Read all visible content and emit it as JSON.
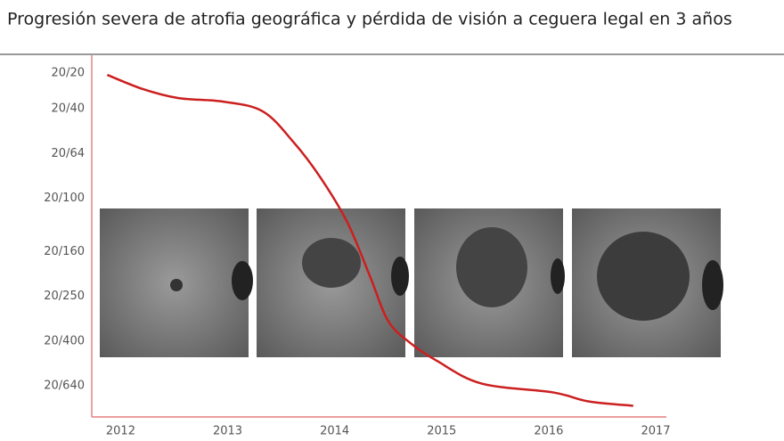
{
  "chart_data": {
    "type": "line",
    "title": "Progresión severa de atrofia geográfica y pérdida de visión a ceguera legal en 3 años",
    "xlim": [
      2011.73,
      2017.1
    ],
    "xticks": [
      2012,
      2013,
      2014,
      2015,
      2016,
      2017
    ],
    "ylim": [
      -0.4,
      7.7
    ],
    "y_inverted": true,
    "yticks": [
      {
        "value": 0,
        "label": "20/20"
      },
      {
        "value": 0.8,
        "label": "20/40"
      },
      {
        "value": 1.8,
        "label": "20/64"
      },
      {
        "value": 2.8,
        "label": "20/100"
      },
      {
        "value": 4,
        "label": "20/160"
      },
      {
        "value": 5,
        "label": "20/250"
      },
      {
        "value": 6,
        "label": "20/400"
      },
      {
        "value": 7,
        "label": "20/640"
      }
    ],
    "series": [
      {
        "color": "#cc1f1f",
        "x": [
          2011.875,
          2012.21,
          2012.54,
          2012.96,
          2013.33,
          2013.62,
          2013.87,
          2014.12,
          2014.33,
          2014.5,
          2014.71,
          2014.96,
          2015.37,
          2016.04,
          2016.37,
          2016.79
        ],
        "values": [
          0.04,
          0.36,
          0.56,
          0.64,
          0.86,
          1.56,
          2.35,
          3.35,
          4.55,
          5.55,
          6.05,
          6.45,
          6.95,
          7.15,
          7.35,
          7.45
        ]
      }
    ]
  }
}
